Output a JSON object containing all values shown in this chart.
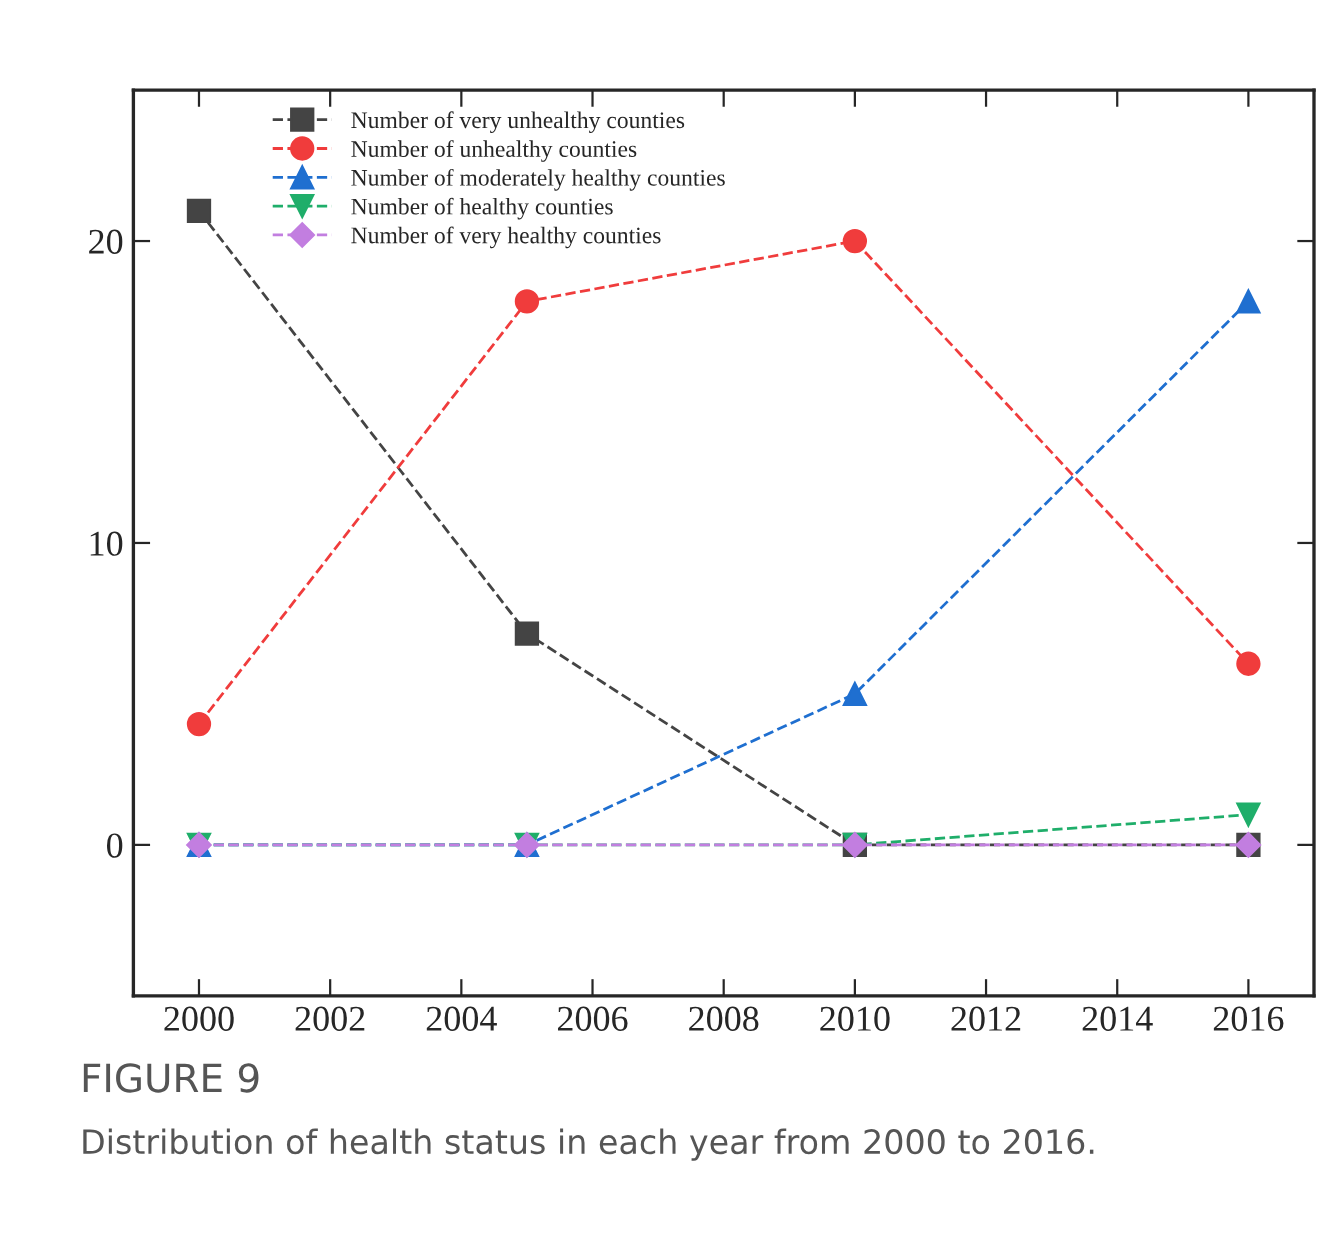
{
  "chart_data": {
    "type": "line",
    "title": "FIGURE 9",
    "subtitle": "Distribution of health status in each year from 2000 to 2016.",
    "x": [
      2000,
      2005,
      2010,
      2016
    ],
    "series": [
      {
        "name": "Number of very unhealthy counties",
        "color": "#444444",
        "marker": "square",
        "values": [
          21,
          7,
          0,
          0
        ]
      },
      {
        "name": "Number of unhealthy counties",
        "color": "#f03c3c",
        "marker": "circle",
        "values": [
          4,
          18,
          20,
          6
        ]
      },
      {
        "name": "Number of moderately healthy counties",
        "color": "#1f6fd0",
        "marker": "triangle",
        "values": [
          0,
          0,
          5,
          18
        ]
      },
      {
        "name": "Number of healthy counties",
        "color": "#1fae6a",
        "marker": "triangle_down",
        "values": [
          0,
          0,
          0,
          1
        ]
      },
      {
        "name": "Number of very healthy counties",
        "color": "#c27ee0",
        "marker": "diamond",
        "values": [
          0,
          0,
          0,
          0
        ]
      }
    ],
    "xlim": [
      1999,
      2017
    ],
    "xticks": [
      2000,
      2002,
      2004,
      2006,
      2008,
      2010,
      2012,
      2014,
      2016
    ],
    "ylim": [
      -5,
      25
    ],
    "yticks": [
      0,
      10,
      20
    ],
    "line_style": "dashed",
    "legend": "top left",
    "grid": false
  }
}
